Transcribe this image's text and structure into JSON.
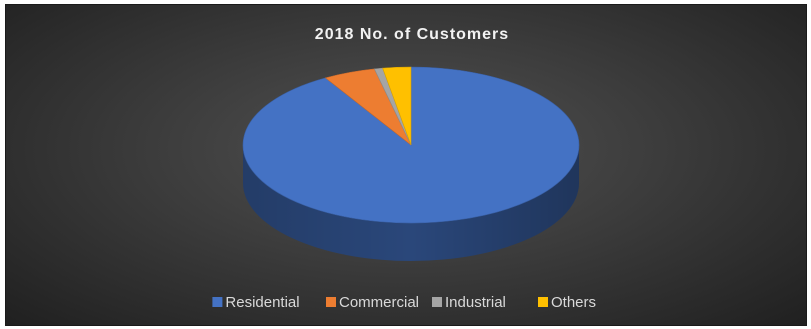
{
  "chart_data": {
    "type": "pie",
    "title": "2018 No. of Customers",
    "categories": [
      "Residential",
      "Commercial",
      "Industrial",
      "Others"
    ],
    "values": [
      91.5,
      5.0,
      0.8,
      2.7
    ],
    "colors": [
      "#4472c4",
      "#ed7d31",
      "#a5a5a5",
      "#ffc000"
    ],
    "legend_position": "bottom",
    "style": "3d"
  }
}
